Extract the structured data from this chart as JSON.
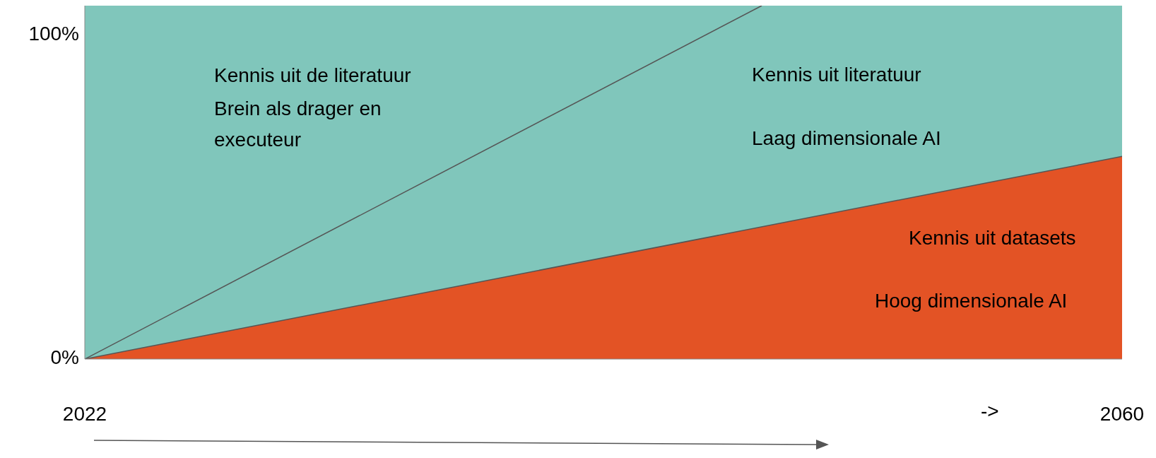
{
  "chart_data": {
    "type": "area",
    "xlim": [
      2022,
      2060
    ],
    "xticks": [
      2022,
      2060
    ],
    "ylim": [
      0,
      109
    ],
    "yticks": [
      {
        "value": 0,
        "label": "0%"
      },
      {
        "value": 100,
        "label": "100%"
      }
    ],
    "bands": [
      {
        "axis": "y",
        "from": 0,
        "to": 109,
        "color": "#80c6bb"
      }
    ],
    "series": [
      {
        "color": "#e35325",
        "x": [
          2022,
          2060
        ],
        "values": [
          0,
          62.5
        ]
      },
      {
        "type": "line",
        "color": "#555555",
        "x": [
          2022,
          2046.8
        ],
        "values": [
          0,
          109
        ]
      }
    ],
    "annotations": [
      "Kennis uit de literatuur",
      "Brein als drager en",
      "executeur",
      "Kennis uit literatuur",
      "Laag dimensionale AI",
      "Kennis uit datasets",
      "Hoog dimensionale AI",
      "->"
    ]
  }
}
